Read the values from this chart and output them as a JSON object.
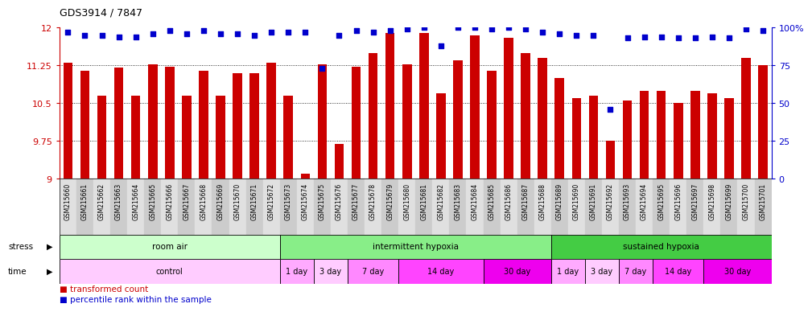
{
  "title": "GDS3914 / 7847",
  "samples": [
    "GSM215660",
    "GSM215661",
    "GSM215662",
    "GSM215663",
    "GSM215664",
    "GSM215665",
    "GSM215666",
    "GSM215667",
    "GSM215668",
    "GSM215669",
    "GSM215670",
    "GSM215671",
    "GSM215672",
    "GSM215673",
    "GSM215674",
    "GSM215675",
    "GSM215676",
    "GSM215677",
    "GSM215678",
    "GSM215679",
    "GSM215680",
    "GSM215681",
    "GSM215682",
    "GSM215683",
    "GSM215684",
    "GSM215685",
    "GSM215686",
    "GSM215687",
    "GSM215688",
    "GSM215689",
    "GSM215690",
    "GSM215691",
    "GSM215692",
    "GSM215693",
    "GSM215694",
    "GSM215695",
    "GSM215696",
    "GSM215697",
    "GSM215698",
    "GSM215699",
    "GSM215700",
    "GSM215701"
  ],
  "red_values": [
    11.3,
    11.15,
    10.65,
    11.2,
    10.65,
    11.27,
    11.22,
    10.65,
    11.15,
    10.65,
    11.1,
    11.1,
    11.3,
    10.65,
    9.1,
    11.27,
    9.7,
    11.22,
    11.5,
    11.9,
    11.27,
    11.9,
    10.7,
    11.35,
    11.85,
    11.15,
    11.8,
    11.5,
    11.4,
    11.0,
    10.6,
    10.65,
    9.75,
    10.55,
    10.75,
    10.75,
    10.5,
    10.75,
    10.7,
    10.6,
    11.4,
    11.25
  ],
  "blue_values": [
    97,
    95,
    95,
    94,
    94,
    96,
    98,
    96,
    98,
    96,
    96,
    95,
    97,
    97,
    97,
    73,
    95,
    98,
    97,
    98,
    99,
    100,
    88,
    100,
    100,
    99,
    100,
    99,
    97,
    96,
    95,
    95,
    46,
    93,
    94,
    94,
    93,
    93,
    94,
    93,
    99,
    98
  ],
  "ylim_left": [
    9.0,
    12.0
  ],
  "ylim_right": [
    0,
    100
  ],
  "yticks_left": [
    9.0,
    9.75,
    10.5,
    11.25,
    12.0
  ],
  "yticks_right": [
    0,
    25,
    50,
    75,
    100
  ],
  "ytick_labels_left": [
    "9",
    "9.75",
    "10.5",
    "11.25",
    "12"
  ],
  "ytick_labels_right": [
    "0",
    "25",
    "50",
    "75",
    "100%"
  ],
  "bar_color": "#cc0000",
  "dot_color": "#0000cc",
  "bar_width": 0.55,
  "stress_groups": [
    {
      "label": "room air",
      "start": 0,
      "end": 13,
      "color": "#ccffcc"
    },
    {
      "label": "intermittent hypoxia",
      "start": 13,
      "end": 29,
      "color": "#88ee88"
    },
    {
      "label": "sustained hypoxia",
      "start": 29,
      "end": 42,
      "color": "#44cc44"
    }
  ],
  "time_groups": [
    {
      "label": "control",
      "start": 0,
      "end": 13,
      "color": "#ffccff"
    },
    {
      "label": "1 day",
      "start": 13,
      "end": 15,
      "color": "#ffaaff"
    },
    {
      "label": "3 day",
      "start": 15,
      "end": 17,
      "color": "#ffccff"
    },
    {
      "label": "7 day",
      "start": 17,
      "end": 20,
      "color": "#ff88ff"
    },
    {
      "label": "14 day",
      "start": 20,
      "end": 25,
      "color": "#ff44ff"
    },
    {
      "label": "30 day",
      "start": 25,
      "end": 29,
      "color": "#ee00ee"
    },
    {
      "label": "1 day",
      "start": 29,
      "end": 31,
      "color": "#ffaaff"
    },
    {
      "label": "3 day",
      "start": 31,
      "end": 33,
      "color": "#ffccff"
    },
    {
      "label": "7 day",
      "start": 33,
      "end": 35,
      "color": "#ff88ff"
    },
    {
      "label": "14 day",
      "start": 35,
      "end": 38,
      "color": "#ff44ff"
    },
    {
      "label": "30 day",
      "start": 38,
      "end": 42,
      "color": "#ee00ee"
    }
  ]
}
